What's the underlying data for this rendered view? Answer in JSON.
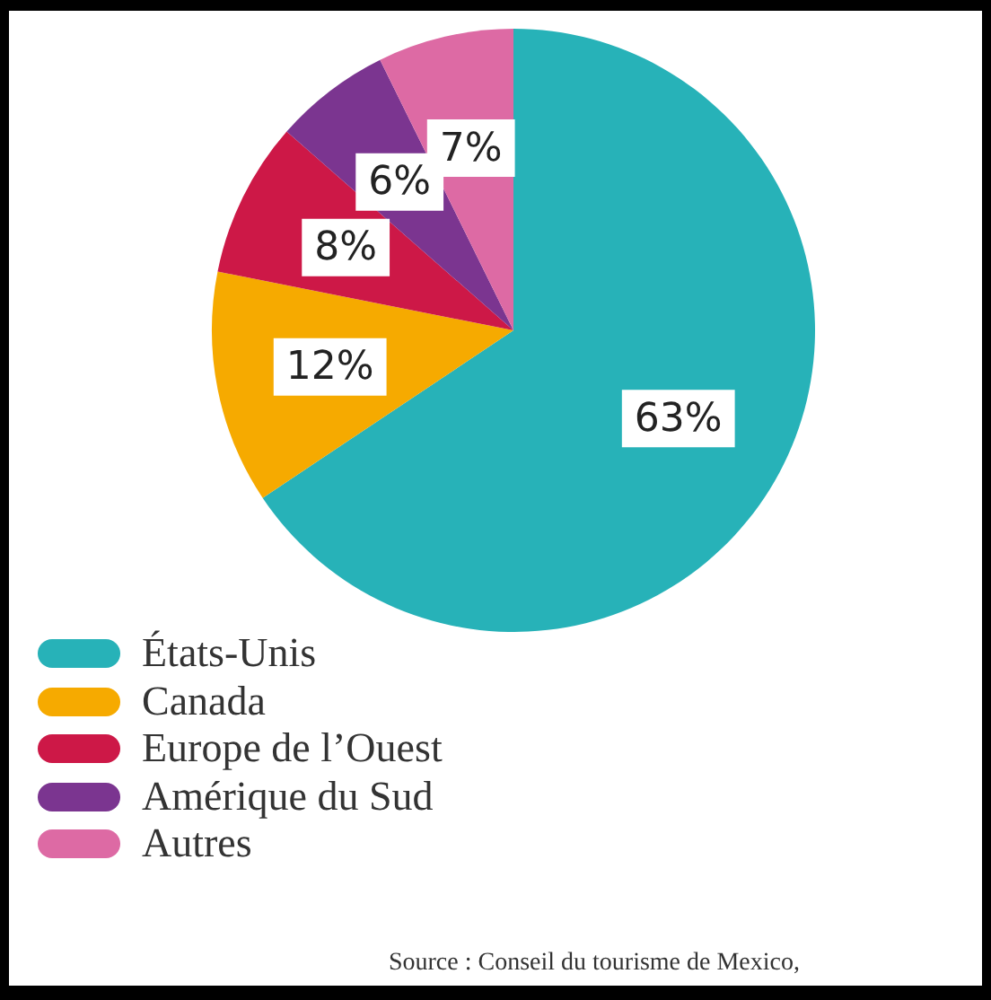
{
  "chart_data": {
    "type": "pie",
    "categories": [
      "États-Unis",
      "Canada",
      "Europe de l’Ouest",
      "Amérique du Sud",
      "Autres"
    ],
    "values": [
      63,
      12,
      8,
      6,
      7
    ],
    "colors": [
      "#27b2b8",
      "#f6aa00",
      "#cd1847",
      "#7b3590",
      "#dd6aa4"
    ],
    "value_labels": [
      "63%",
      "12%",
      "8%",
      "6%",
      "7%"
    ],
    "legend": "bottom left",
    "annotations": [
      "Source : Conseil du tourisme de Mexico,"
    ]
  }
}
